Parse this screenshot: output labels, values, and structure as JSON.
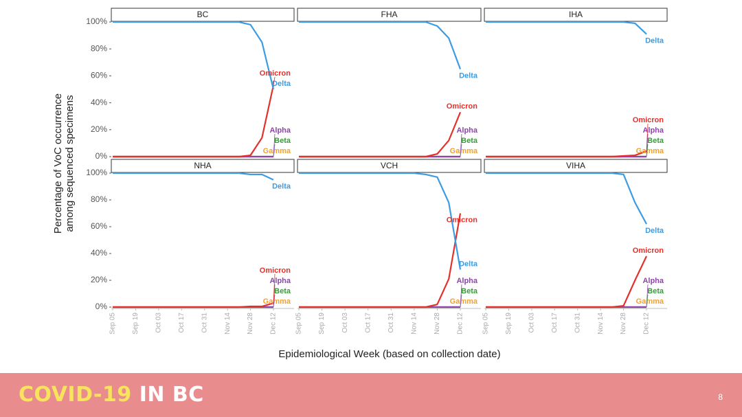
{
  "chart_data": {
    "type": "line",
    "ylabel": [
      "Percentage of VoC occurrence",
      "among sequenced specimens"
    ],
    "xlabel": "Epidemiological Week (based on collection date)",
    "categories": [
      "Sep 05",
      null,
      "Sep 19",
      null,
      "Oct 03",
      null,
      "Oct 17",
      null,
      "Oct 31",
      null,
      "Nov 14",
      null,
      "Nov 28",
      null,
      "Dec 12"
    ],
    "ylim": [
      0,
      100
    ],
    "yticks": [
      {
        "value": 0,
        "label": "0%"
      },
      {
        "value": 20,
        "label": "20%"
      },
      {
        "value": 40,
        "label": "40%"
      },
      {
        "value": 60,
        "label": "60%"
      },
      {
        "value": 80,
        "label": "80%"
      },
      {
        "value": 100,
        "label": "100%"
      }
    ],
    "grid": false,
    "panels": [
      {
        "title": "BC",
        "series": [
          {
            "name": "Delta",
            "color": "#3b9be3",
            "values": [
              100,
              100,
              100,
              100,
              100,
              100,
              100,
              100,
              100,
              100,
              100,
              100,
              98,
              85,
              50
            ]
          },
          {
            "name": "Omicron",
            "color": "#e2312b",
            "values": [
              0,
              0,
              0,
              0,
              0,
              0,
              0,
              0,
              0,
              0,
              0,
              0,
              1,
              14,
              53
            ]
          },
          {
            "name": "Alpha",
            "color": "#8e44ad",
            "values": [
              0,
              0,
              0,
              0,
              0,
              0,
              0,
              0,
              0,
              0,
              0,
              0,
              0,
              0,
              0
            ]
          },
          {
            "name": "Beta",
            "color": "#3a9a3a",
            "values": [
              0,
              0,
              0,
              0,
              0,
              0,
              0,
              0,
              0,
              0,
              0,
              0,
              0,
              0,
              0
            ]
          },
          {
            "name": "Gamma",
            "color": "#f0a030",
            "values": [
              0,
              0,
              0,
              0,
              0,
              0,
              0,
              0,
              0,
              0,
              0,
              0,
              0,
              0,
              0
            ]
          }
        ]
      },
      {
        "title": "FHA",
        "series": [
          {
            "name": "Delta",
            "color": "#3b9be3",
            "values": [
              100,
              100,
              100,
              100,
              100,
              100,
              100,
              100,
              100,
              100,
              100,
              100,
              97,
              88,
              65
            ]
          },
          {
            "name": "Omicron",
            "color": "#e2312b",
            "values": [
              0,
              0,
              0,
              0,
              0,
              0,
              0,
              0,
              0,
              0,
              0,
              0,
              2,
              12,
              33
            ]
          },
          {
            "name": "Alpha",
            "color": "#8e44ad",
            "values": [
              0,
              0,
              0,
              0,
              0,
              0,
              0,
              0,
              0,
              0,
              0,
              0,
              0,
              0,
              0
            ]
          },
          {
            "name": "Beta",
            "color": "#3a9a3a",
            "values": [
              0,
              0,
              0,
              0,
              0,
              0,
              0,
              0,
              0,
              0,
              0,
              0,
              0,
              0,
              0
            ]
          },
          {
            "name": "Gamma",
            "color": "#f0a030",
            "values": [
              0,
              0,
              0,
              0,
              0,
              0,
              0,
              0,
              0,
              0,
              0,
              0,
              0,
              0,
              0
            ]
          }
        ]
      },
      {
        "title": "IHA",
        "series": [
          {
            "name": "Delta",
            "color": "#3b9be3",
            "values": [
              100,
              100,
              100,
              100,
              100,
              100,
              100,
              100,
              100,
              100,
              100,
              100,
              100,
              99,
              91
            ]
          },
          {
            "name": "Omicron",
            "color": "#e2312b",
            "values": [
              0,
              0,
              0,
              0,
              0,
              0,
              0,
              0,
              0,
              0,
              0,
              0,
              0.5,
              1,
              4
            ]
          },
          {
            "name": "Alpha",
            "color": "#8e44ad",
            "values": [
              0,
              0,
              0,
              0,
              0,
              0,
              0,
              0,
              0,
              0,
              0,
              0,
              0,
              0,
              0
            ]
          },
          {
            "name": "Beta",
            "color": "#3a9a3a",
            "values": [
              0,
              0,
              0,
              0,
              0,
              0,
              0,
              0,
              0,
              0,
              0,
              0,
              0,
              0,
              0
            ]
          },
          {
            "name": "Gamma",
            "color": "#f0a030",
            "values": [
              0,
              0,
              0,
              0,
              0,
              0,
              0,
              0,
              0,
              0,
              0,
              0,
              0,
              0,
              0
            ]
          }
        ]
      },
      {
        "title": "NHA",
        "series": [
          {
            "name": "Delta",
            "color": "#3b9be3",
            "values": [
              100,
              100,
              100,
              100,
              100,
              100,
              100,
              100,
              100,
              100,
              100,
              100,
              99,
              99,
              95
            ]
          },
          {
            "name": "Omicron",
            "color": "#e2312b",
            "values": [
              0,
              0,
              0,
              0,
              0,
              0,
              0,
              0,
              0,
              0,
              0,
              0,
              0.5,
              0.5,
              3
            ]
          },
          {
            "name": "Alpha",
            "color": "#8e44ad",
            "values": [
              0,
              0,
              0,
              0,
              0,
              0,
              0,
              0,
              0,
              0,
              0,
              0,
              0,
              0,
              0
            ]
          },
          {
            "name": "Beta",
            "color": "#3a9a3a",
            "values": [
              0,
              0,
              0,
              0,
              0,
              0,
              0,
              0,
              0,
              0,
              0,
              0,
              0,
              0,
              0
            ]
          },
          {
            "name": "Gamma",
            "color": "#f0a030",
            "values": [
              0,
              0,
              0,
              0,
              0,
              0,
              0,
              0,
              0,
              0,
              0,
              0,
              0,
              0,
              0
            ]
          }
        ]
      },
      {
        "title": "VCH",
        "series": [
          {
            "name": "Delta",
            "color": "#3b9be3",
            "values": [
              100,
              100,
              100,
              100,
              100,
              100,
              100,
              100,
              100,
              100,
              100,
              99,
              97,
              78,
              28
            ]
          },
          {
            "name": "Omicron",
            "color": "#e2312b",
            "values": [
              0,
              0,
              0,
              0,
              0,
              0,
              0,
              0,
              0,
              0,
              0,
              0,
              2,
              21,
              70
            ]
          },
          {
            "name": "Alpha",
            "color": "#8e44ad",
            "values": [
              0,
              0,
              0,
              0,
              0,
              0,
              0,
              0,
              0,
              0,
              0,
              0,
              0,
              0,
              0
            ]
          },
          {
            "name": "Beta",
            "color": "#3a9a3a",
            "values": [
              0,
              0,
              0,
              0,
              0,
              0,
              0,
              0,
              0,
              0,
              0,
              0,
              0,
              0,
              0
            ]
          },
          {
            "name": "Gamma",
            "color": "#f0a030",
            "values": [
              0,
              0,
              0,
              0,
              0,
              0,
              0,
              0,
              0,
              0,
              0,
              0,
              0,
              0,
              0
            ]
          }
        ]
      },
      {
        "title": "VIHA",
        "series": [
          {
            "name": "Delta",
            "color": "#3b9be3",
            "values": [
              100,
              100,
              100,
              100,
              100,
              100,
              100,
              100,
              100,
              100,
              100,
              100,
              99,
              78,
              62
            ]
          },
          {
            "name": "Omicron",
            "color": "#e2312b",
            "values": [
              0,
              0,
              0,
              0,
              0,
              0,
              0,
              0,
              0,
              0,
              0,
              0,
              1,
              20,
              38
            ]
          },
          {
            "name": "Alpha",
            "color": "#8e44ad",
            "values": [
              0,
              0,
              0,
              0,
              0,
              0,
              0,
              0,
              0,
              0,
              0,
              0,
              0,
              0,
              0
            ]
          },
          {
            "name": "Beta",
            "color": "#3a9a3a",
            "values": [
              0,
              0,
              0,
              0,
              0,
              0,
              0,
              0,
              0,
              0,
              0,
              0,
              0,
              0,
              0
            ]
          },
          {
            "name": "Gamma",
            "color": "#f0a030",
            "values": [
              0,
              0,
              0,
              0,
              0,
              0,
              0,
              0,
              0,
              0,
              0,
              0,
              0,
              0,
              0
            ]
          }
        ]
      }
    ]
  },
  "footer": {
    "brand_a": "COVID-19",
    "brand_b": "IN BC",
    "page": "8"
  }
}
